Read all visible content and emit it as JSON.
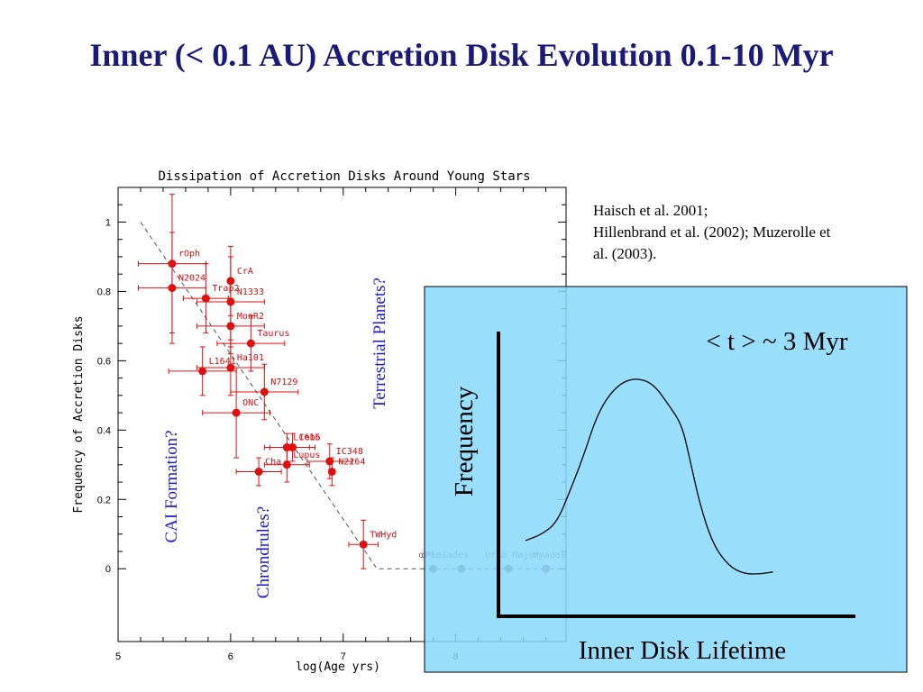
{
  "slide": {
    "title": "Inner (< 0.1 AU) Accretion Disk Evolution 0.1-10 Myr",
    "citation_lines": [
      "Haisch et al. 2001;",
      "Hillenbrand et al. (2002); Muzerolle et",
      "al. (2003)."
    ]
  },
  "annotations": {
    "cai": "CAI Formation?",
    "chondrules": "Chrondrules?",
    "planets": "Terrestrial Planets?"
  },
  "chart_data": [
    {
      "type": "scatter",
      "title": "Dissipation of Accretion Disks Around Young Stars",
      "xlabel": "log(Age yrs)",
      "ylabel": "Frequency of Accretion Disks",
      "xlim": [
        5,
        8.98
      ],
      "ylim": [
        -0.21,
        1.1
      ],
      "xticks": [
        5,
        6,
        7,
        8
      ],
      "yticks": [
        0,
        0.2,
        0.4,
        0.6,
        0.8,
        1
      ],
      "tick_labels_x": [
        "5",
        "6",
        "7",
        "8"
      ],
      "tick_labels_y": [
        "0",
        "0.2",
        "0.4",
        "0.6",
        "0.8",
        "1"
      ],
      "colors": {
        "points": "#e01010",
        "clusters": "#8a5a7a",
        "inset_fill": "#87d8fc"
      },
      "series": [
        {
          "points": [
            {
              "name": "rOph",
              "x": 5.48,
              "y": 0.88,
              "xerr": [
                0.3,
                0.3
              ],
              "yerr": [
                0.2,
                0.2
              ],
              "label_pos": "upper-right"
            },
            {
              "name": "N2024",
              "x": 5.48,
              "y": 0.81,
              "xerr": [
                0.3,
                0.3
              ],
              "yerr": [
                0.16,
                0.16
              ],
              "label_pos": "right"
            },
            {
              "name": "CrA",
              "x": 6.0,
              "y": 0.83,
              "xerr": [
                0.0,
                0.0
              ],
              "yerr": [
                0.1,
                0.1
              ],
              "label_pos": "upper-right"
            },
            {
              "name": "Trap2",
              "x": 5.78,
              "y": 0.78,
              "xerr": [
                0.2,
                0.2
              ],
              "yerr": [
                0.1,
                0.1
              ],
              "label_pos": "upper-right"
            },
            {
              "name": "N1333",
              "x": 6.0,
              "y": 0.77,
              "xerr": [
                0.3,
                0.3
              ],
              "yerr": [
                0.13,
                0.13
              ],
              "label_pos": "upper-right"
            },
            {
              "name": "MonR2",
              "x": 6.0,
              "y": 0.7,
              "xerr": [
                0.3,
                0.3
              ],
              "yerr": [
                0.08,
                0.08
              ],
              "label_pos": "upper-right"
            },
            {
              "name": "Taurus",
              "x": 6.18,
              "y": 0.65,
              "xerr": [
                0.3,
                0.3
              ],
              "yerr": [
                0.08,
                0.08
              ],
              "label_pos": "upper-right"
            },
            {
              "name": "L1641",
              "x": 5.75,
              "y": 0.57,
              "xerr": [
                0.3,
                0.3
              ],
              "yerr": [
                0.07,
                0.07
              ],
              "label_pos": "upper-right"
            },
            {
              "name": "Ha101",
              "x": 6.0,
              "y": 0.58,
              "xerr": [
                0.3,
                0.3
              ],
              "yerr": [
                0.08,
                0.08
              ],
              "label_pos": "upper-right"
            },
            {
              "name": "N7129",
              "x": 6.3,
              "y": 0.51,
              "xerr": [
                0.3,
                0.3
              ],
              "yerr": [
                0.08,
                0.08
              ],
              "label_pos": "upper-right"
            },
            {
              "name": "ONC",
              "x": 6.05,
              "y": 0.45,
              "xerr": [
                0.3,
                0.3
              ],
              "yerr": [
                0.13,
                0.13
              ],
              "label_pos": "upper-right"
            },
            {
              "name": "L1615",
              "x": 6.5,
              "y": 0.35,
              "xerr": [
                0.2,
                0.2
              ],
              "yerr": [
                0.04,
                0.04
              ],
              "label_pos": "upper-right"
            },
            {
              "name": "Ceb6",
              "x": 6.55,
              "y": 0.35,
              "xerr": [
                0.2,
                0.2
              ],
              "yerr": [
                0.04,
                0.04
              ],
              "label_pos": "upper-right"
            },
            {
              "name": "Cha",
              "x": 6.25,
              "y": 0.28,
              "xerr": [
                0.2,
                0.2
              ],
              "yerr": [
                0.04,
                0.04
              ],
              "label_pos": "upper-right"
            },
            {
              "name": "Lupus",
              "x": 6.5,
              "y": 0.3,
              "xerr": [
                0.2,
                0.2
              ],
              "yerr": [
                0.05,
                0.05
              ],
              "label_pos": "upper-right"
            },
            {
              "name": "IC348",
              "x": 6.88,
              "y": 0.31,
              "xerr": [
                0.2,
                0.2
              ],
              "yerr": [
                0.05,
                0.05
              ],
              "label_pos": "upper-right"
            },
            {
              "name": "N2264",
              "x": 6.9,
              "y": 0.28,
              "xerr": [
                0.0,
                0.0
              ],
              "yerr": [
                0.04,
                0.04
              ],
              "label_pos": "upper-right"
            },
            {
              "name": "TWHyd",
              "x": 7.18,
              "y": 0.07,
              "xerr": [
                0.13,
                0.13
              ],
              "yerr": [
                0.07,
                0.07
              ],
              "label_pos": "upper-right"
            }
          ]
        },
        {
          "points": [
            {
              "name": "αPer",
              "x": 7.8,
              "y": 0.0,
              "label_pos": "upper-left"
            },
            {
              "name": "Pleiades",
              "x": 8.05,
              "y": 0.0,
              "label_pos": "upper-left"
            },
            {
              "name": "Ursa Major",
              "x": 8.47,
              "y": 0.0,
              "label_pos": "upper-right"
            },
            {
              "name": "Hyades",
              "x": 8.8,
              "y": 0.0,
              "label_pos": "upper-right"
            }
          ]
        }
      ],
      "trend_line": [
        [
          5.2,
          1.0
        ],
        [
          7.3,
          0.0
        ],
        [
          8.98,
          0.0
        ]
      ]
    },
    {
      "type": "line",
      "title": "",
      "annotation": "< t > ~ 3 Myr",
      "xlabel": "Inner Disk Lifetime",
      "ylabel": "Frequency",
      "x": [
        0.0,
        0.06,
        0.12,
        0.17,
        0.22,
        0.28,
        0.35,
        0.42,
        0.49,
        0.55,
        0.6,
        0.63,
        0.67,
        0.72,
        0.78,
        0.84,
        0.9,
        0.95
      ],
      "y": [
        0.17,
        0.2,
        0.26,
        0.42,
        0.59,
        0.83,
        0.96,
        1.0,
        0.97,
        0.86,
        0.76,
        0.59,
        0.35,
        0.15,
        0.04,
        0.0,
        0.0,
        0.01
      ]
    }
  ]
}
